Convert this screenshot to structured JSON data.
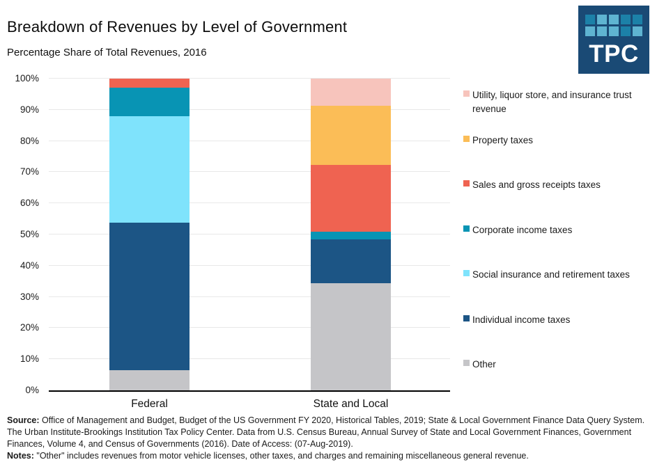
{
  "header": {
    "title": "Breakdown of Revenues by Level of Government",
    "subtitle": "Percentage Share of Total Revenues, 2016"
  },
  "logo": {
    "text": "TPC",
    "bg_color": "#1A4A75",
    "square_colors": {
      "light": "#5FB4D1",
      "mid": "#1C81A8"
    },
    "grid": [
      "mid",
      "light",
      "light",
      "mid",
      "mid",
      "light",
      "light",
      "light",
      "mid",
      "light"
    ]
  },
  "chart_data": {
    "type": "bar",
    "subtype": "stacked-100-percent",
    "title": "Breakdown of Revenues by Level of Government",
    "subtitle": "Percentage Share of Total Revenues, 2016",
    "categories": [
      "Federal",
      "State and Local"
    ],
    "yticks": [
      "0%",
      "10%",
      "20%",
      "30%",
      "40%",
      "50%",
      "60%",
      "70%",
      "80%",
      "90%",
      "100%"
    ],
    "ylim": [
      0,
      100
    ],
    "grid": true,
    "legend_position": "right",
    "stacking_order": "bottom-to-top",
    "series": [
      {
        "name": "Other",
        "color": "#C5C5C8",
        "values": [
          6.5,
          34.3
        ]
      },
      {
        "name": "Individual income taxes",
        "color": "#1C5585",
        "values": [
          47.3,
          14.2
        ]
      },
      {
        "name": "Social insurance and retirement taxes",
        "color": "#7FE3FC",
        "values": [
          34.1,
          0
        ]
      },
      {
        "name": "Corporate income taxes",
        "color": "#0894B4",
        "values": [
          9.2,
          2.3
        ]
      },
      {
        "name": "Sales and gross receipts taxes",
        "color": "#EF6351",
        "values": [
          2.9,
          21.6
        ]
      },
      {
        "name": "Property taxes",
        "color": "#FBBD57",
        "values": [
          0,
          19.0
        ]
      },
      {
        "name": "Utility, liquor store, and insurance trust revenue",
        "color": "#F7C4BC",
        "values": [
          0,
          8.6
        ]
      }
    ]
  },
  "legend": {
    "items": [
      {
        "label": "Utility, liquor store, and insurance trust revenue",
        "color": "#F7C4BC"
      },
      {
        "label": "Property taxes",
        "color": "#FBBD57"
      },
      {
        "label": "Sales and gross receipts taxes",
        "color": "#EF6351"
      },
      {
        "label": "Corporate income taxes",
        "color": "#0894B4"
      },
      {
        "label": "Social insurance and retirement taxes",
        "color": "#7FE3FC"
      },
      {
        "label": "Individual income taxes",
        "color": "#1C5585"
      },
      {
        "label": "Other",
        "color": "#C5C5C8"
      }
    ]
  },
  "footer": {
    "source_label": "Source:",
    "source_text": "Office of Management and Budget, Budget of the US Government FY 2020, Historical Tables, 2019; State & Local Government Finance Data Query System. The Urban Institute-Brookings Institution Tax Policy Center. Data from U.S. Census Bureau, Annual Survey of State and Local Government Finances, Government Finances, Volume 4, and Census of Governments (2016). Date of Access: (07-Aug-2019).",
    "notes_label": "Notes:",
    "notes_text": "\"Other\" includes revenues from motor vehicle licenses, other taxes, and charges and remaining miscellaneous general revenue."
  }
}
